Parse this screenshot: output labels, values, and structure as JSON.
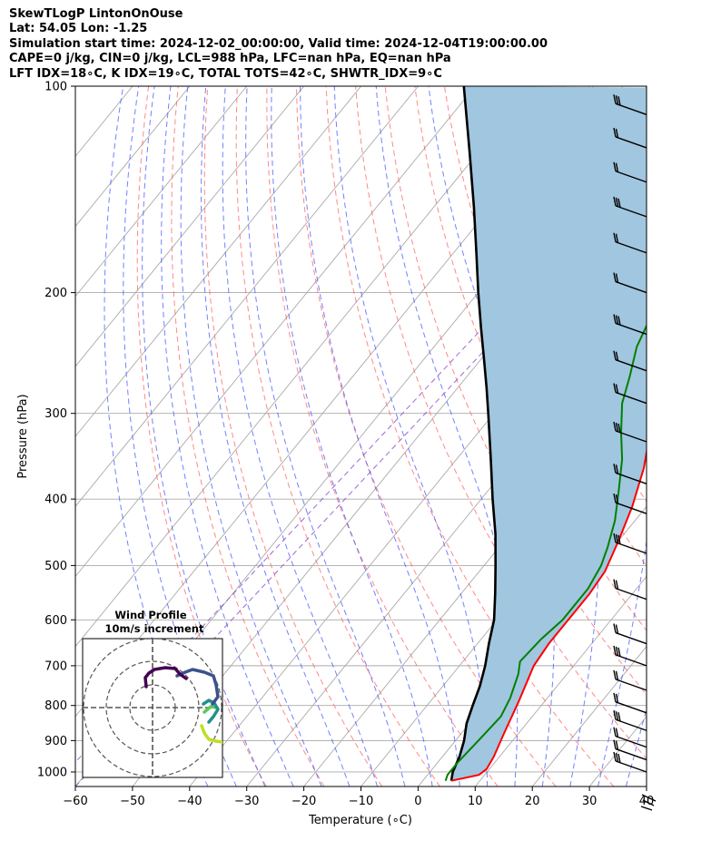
{
  "header": {
    "line1": "SkewTLogP LintonOnOuse",
    "line2": "Lat: 54.05   Lon: -1.25",
    "line3": "Simulation start time: 2024-12-02_00:00:00, Valid time: 2024-12-04T19:00:00.00",
    "line4": "CAPE=0 j/kg, CIN=0 j/kg, LCL=988 hPa, LFC=nan hPa, EQ=nan hPa",
    "line5": "LFT IDX=18∘C, K IDX=19∘C, TOTAL TOTS=42∘C, SHWTR_IDX=9∘C"
  },
  "chart_data": {
    "type": "line",
    "subtype": "skew-t log-p",
    "xlabel": "Temperature (∘C)",
    "ylabel": "Pressure (hPa)",
    "xlim": [
      -60,
      40
    ],
    "ylim": [
      1050,
      100
    ],
    "yscale": "log",
    "x_ticks": [
      "−60",
      "−50",
      "−40",
      "−30",
      "−20",
      "−10",
      "0",
      "10",
      "20",
      "30",
      "40"
    ],
    "y_ticks": [
      1000,
      900,
      800,
      700,
      600,
      500,
      400,
      300,
      200,
      100
    ],
    "grid": true,
    "colors": {
      "temperature": "#ff0000",
      "dewpoint": "#008000",
      "parcel": "#000000",
      "shading": "#a1c6df",
      "dry_adiabats": "#ff5555",
      "moist_adiabats": "#4455ff",
      "mixing_ratio": "#8844cc",
      "isotherms": "#aaaaaa"
    },
    "series": [
      {
        "role": "temperature",
        "points": [
          [
            5,
            1030
          ],
          [
            9,
            1010
          ],
          [
            9.5,
            990
          ],
          [
            9,
            950
          ],
          [
            7.5,
            880
          ],
          [
            5.5,
            790
          ],
          [
            3,
            700
          ],
          [
            2.5,
            650
          ],
          [
            2.5,
            600
          ],
          [
            2.5,
            550
          ],
          [
            2,
            510
          ],
          [
            0,
            460
          ],
          [
            -2.5,
            410
          ],
          [
            -6,
            360
          ],
          [
            -11,
            310
          ],
          [
            -15,
            270
          ],
          [
            -18,
            240
          ],
          [
            -20.5,
            215
          ],
          [
            -20.5,
            205
          ],
          [
            -20,
            195
          ],
          [
            -18,
            185
          ],
          [
            -16,
            175
          ],
          [
            -16,
            165
          ],
          [
            -17,
            155
          ],
          [
            -18,
            145
          ],
          [
            -18,
            135
          ],
          [
            -18,
            125
          ],
          [
            -18.5,
            115
          ],
          [
            -19,
            107
          ],
          [
            -19,
            101
          ]
        ]
      },
      {
        "role": "dewpoint",
        "points": [
          [
            4,
            1030
          ],
          [
            3.5,
            1010
          ],
          [
            3.5,
            970
          ],
          [
            4,
            900
          ],
          [
            4.5,
            830
          ],
          [
            3.5,
            780
          ],
          [
            1.5,
            720
          ],
          [
            0,
            690
          ],
          [
            0.5,
            640
          ],
          [
            1.5,
            600
          ],
          [
            1.5,
            540
          ],
          [
            0.5,
            500
          ],
          [
            -1,
            470
          ],
          [
            -3.5,
            430
          ],
          [
            -7,
            390
          ],
          [
            -11,
            350
          ],
          [
            -15,
            320
          ],
          [
            -19,
            290
          ],
          [
            -21.5,
            265
          ],
          [
            -24.5,
            240
          ],
          [
            -26.5,
            215
          ],
          [
            -27,
            200
          ],
          [
            -26,
            180
          ],
          [
            -27,
            160
          ],
          [
            -27.5,
            145
          ],
          [
            -27.5,
            135
          ],
          [
            -27,
            128
          ],
          [
            -26,
            120
          ],
          [
            -24.5,
            112
          ],
          [
            -23,
            105
          ],
          [
            -22,
            100
          ]
        ]
      },
      {
        "role": "parcel",
        "points": [
          [
            5,
            1030
          ],
          [
            4,
            1000
          ],
          [
            3,
            950
          ],
          [
            1.5,
            900
          ],
          [
            -0.5,
            850
          ],
          [
            -2,
            800
          ],
          [
            -3.5,
            750
          ],
          [
            -5.5,
            700
          ],
          [
            -8,
            650
          ],
          [
            -10.5,
            600
          ],
          [
            -14,
            550
          ],
          [
            -18,
            500
          ],
          [
            -22.5,
            450
          ],
          [
            -28,
            400
          ],
          [
            -34,
            350
          ],
          [
            -41,
            300
          ],
          [
            -45,
            275
          ],
          [
            -49.5,
            250
          ],
          [
            -54.5,
            225
          ],
          [
            -60,
            200
          ],
          [
            -66,
            175
          ],
          [
            -73,
            150
          ],
          [
            -81.5,
            125
          ],
          [
            -92,
            100
          ]
        ]
      }
    ],
    "wind_barbs": {
      "description": "wind barbs along right edge",
      "levels_hpa": [
        1000,
        960,
        920,
        870,
        820,
        760,
        700,
        650,
        560,
        480,
        420,
        380,
        330,
        290,
        260,
        230,
        200,
        175,
        155,
        138,
        123,
        110
      ]
    },
    "inset": {
      "title": "Wind Profile",
      "subtitle": "10m/s increment",
      "colors": [
        "#440154",
        "#3b528b",
        "#21918c",
        "#5ec962",
        "#bddf26"
      ]
    }
  }
}
